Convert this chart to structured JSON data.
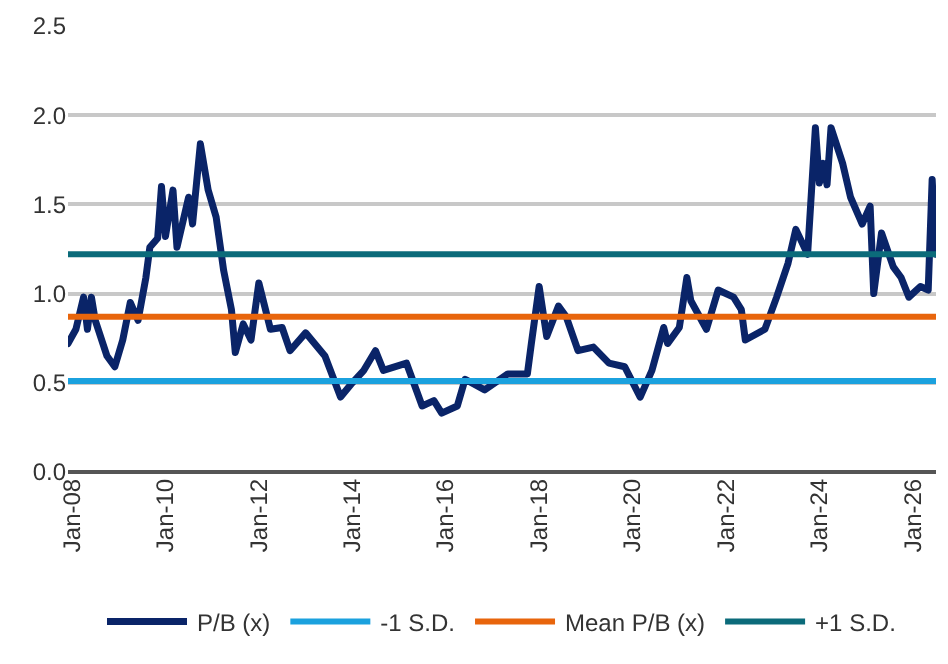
{
  "chart_data": {
    "type": "line",
    "ylim": [
      0,
      2.5
    ],
    "yticks": [
      {
        "value": 0,
        "label": "0.0"
      },
      {
        "value": 0.5,
        "label": "0.5"
      },
      {
        "value": 1,
        "label": "1.0"
      },
      {
        "value": 1.5,
        "label": "1.5"
      },
      {
        "value": 2,
        "label": "2.0"
      },
      {
        "value": 2.5,
        "label": "2.5"
      }
    ],
    "xlim": [
      "2007-12",
      "2026-07"
    ],
    "xticks": [
      {
        "value": "2008-01",
        "label": "Jan-08"
      },
      {
        "value": "2010-01",
        "label": "Jan-10"
      },
      {
        "value": "2012-01",
        "label": "Jan-12"
      },
      {
        "value": "2014-01",
        "label": "Jan-14"
      },
      {
        "value": "2016-01",
        "label": "Jan-16"
      },
      {
        "value": "2018-01",
        "label": "Jan-18"
      },
      {
        "value": "2020-01",
        "label": "Jan-20"
      },
      {
        "value": "2022-01",
        "label": "Jan-22"
      },
      {
        "value": "2024-01",
        "label": "Jan-24"
      },
      {
        "value": "2026-01",
        "label": "Jan-26"
      }
    ],
    "grid": "y",
    "legend": "bottom",
    "marker": "none",
    "line_style": "solid",
    "series": [
      {
        "name": "P/B (x)",
        "color": "#0a2468",
        "x": [
          "2007-12",
          "2008-02",
          "2008-04",
          "2008-05",
          "2008-06",
          "2008-07",
          "2008-10",
          "2008-12",
          "2009-02",
          "2009-04",
          "2009-06",
          "2009-08",
          "2009-09",
          "2009-11",
          "2009-12",
          "2010-01",
          "2010-03",
          "2010-04",
          "2010-07",
          "2010-08",
          "2010-10",
          "2010-12",
          "2011-02",
          "2011-04",
          "2011-06",
          "2011-07",
          "2011-09",
          "2011-11",
          "2012-01",
          "2012-04",
          "2012-07",
          "2012-09",
          "2013-01",
          "2013-06",
          "2013-10",
          "2014-01",
          "2014-04",
          "2014-07",
          "2014-09",
          "2015-03",
          "2015-07",
          "2015-10",
          "2015-12",
          "2016-04",
          "2016-06",
          "2016-11",
          "2017-05",
          "2017-10",
          "2017-11",
          "2018-01",
          "2018-03",
          "2018-06",
          "2018-08",
          "2018-11",
          "2019-03",
          "2019-07",
          "2019-11",
          "2020-03",
          "2020-06",
          "2020-09",
          "2020-10",
          "2021-01",
          "2021-03",
          "2021-04",
          "2021-08",
          "2021-11",
          "2022-03",
          "2022-05",
          "2022-06",
          "2022-11",
          "2023-02",
          "2023-05",
          "2023-07",
          "2023-10",
          "2023-12",
          "2024-01",
          "2024-02",
          "2024-03",
          "2024-04",
          "2024-07",
          "2024-09",
          "2024-12",
          "2025-02",
          "2025-03",
          "2025-05",
          "2025-08",
          "2025-10",
          "2025-12",
          "2026-03",
          "2026-05",
          "2026-06",
          "2026-07"
        ],
        "values": [
          0.72,
          0.8,
          0.98,
          0.8,
          0.98,
          0.85,
          0.65,
          0.59,
          0.74,
          0.95,
          0.85,
          1.09,
          1.26,
          1.31,
          1.6,
          1.32,
          1.58,
          1.26,
          1.54,
          1.39,
          1.84,
          1.58,
          1.43,
          1.13,
          0.91,
          0.67,
          0.83,
          0.74,
          1.06,
          0.8,
          0.81,
          0.68,
          0.78,
          0.65,
          0.42,
          0.5,
          0.57,
          0.68,
          0.57,
          0.61,
          0.37,
          0.4,
          0.33,
          0.37,
          0.52,
          0.46,
          0.55,
          0.55,
          0.72,
          1.04,
          0.76,
          0.93,
          0.87,
          0.68,
          0.7,
          0.61,
          0.59,
          0.42,
          0.57,
          0.81,
          0.72,
          0.81,
          1.09,
          0.96,
          0.8,
          1.02,
          0.98,
          0.91,
          0.74,
          0.8,
          0.98,
          1.17,
          1.36,
          1.22,
          1.93,
          1.62,
          1.73,
          1.61,
          1.93,
          1.73,
          1.54,
          1.39,
          1.49,
          1.0,
          1.34,
          1.15,
          1.09,
          0.98,
          1.04,
          1.02,
          1.64,
          1.22
        ]
      },
      {
        "name": "-1 S.D.",
        "color": "#1ba1de",
        "x": [
          "2007-12",
          "2026-07"
        ],
        "values": [
          0.51,
          0.51
        ]
      },
      {
        "name": "Mean P/B (x)",
        "color": "#e8650c",
        "x": [
          "2007-12",
          "2026-07"
        ],
        "values": [
          0.87,
          0.87
        ]
      },
      {
        "name": "+1 S.D.",
        "color": "#0b6b7a",
        "x": [
          "2007-12",
          "2026-07"
        ],
        "values": [
          1.22,
          1.22
        ]
      }
    ]
  }
}
